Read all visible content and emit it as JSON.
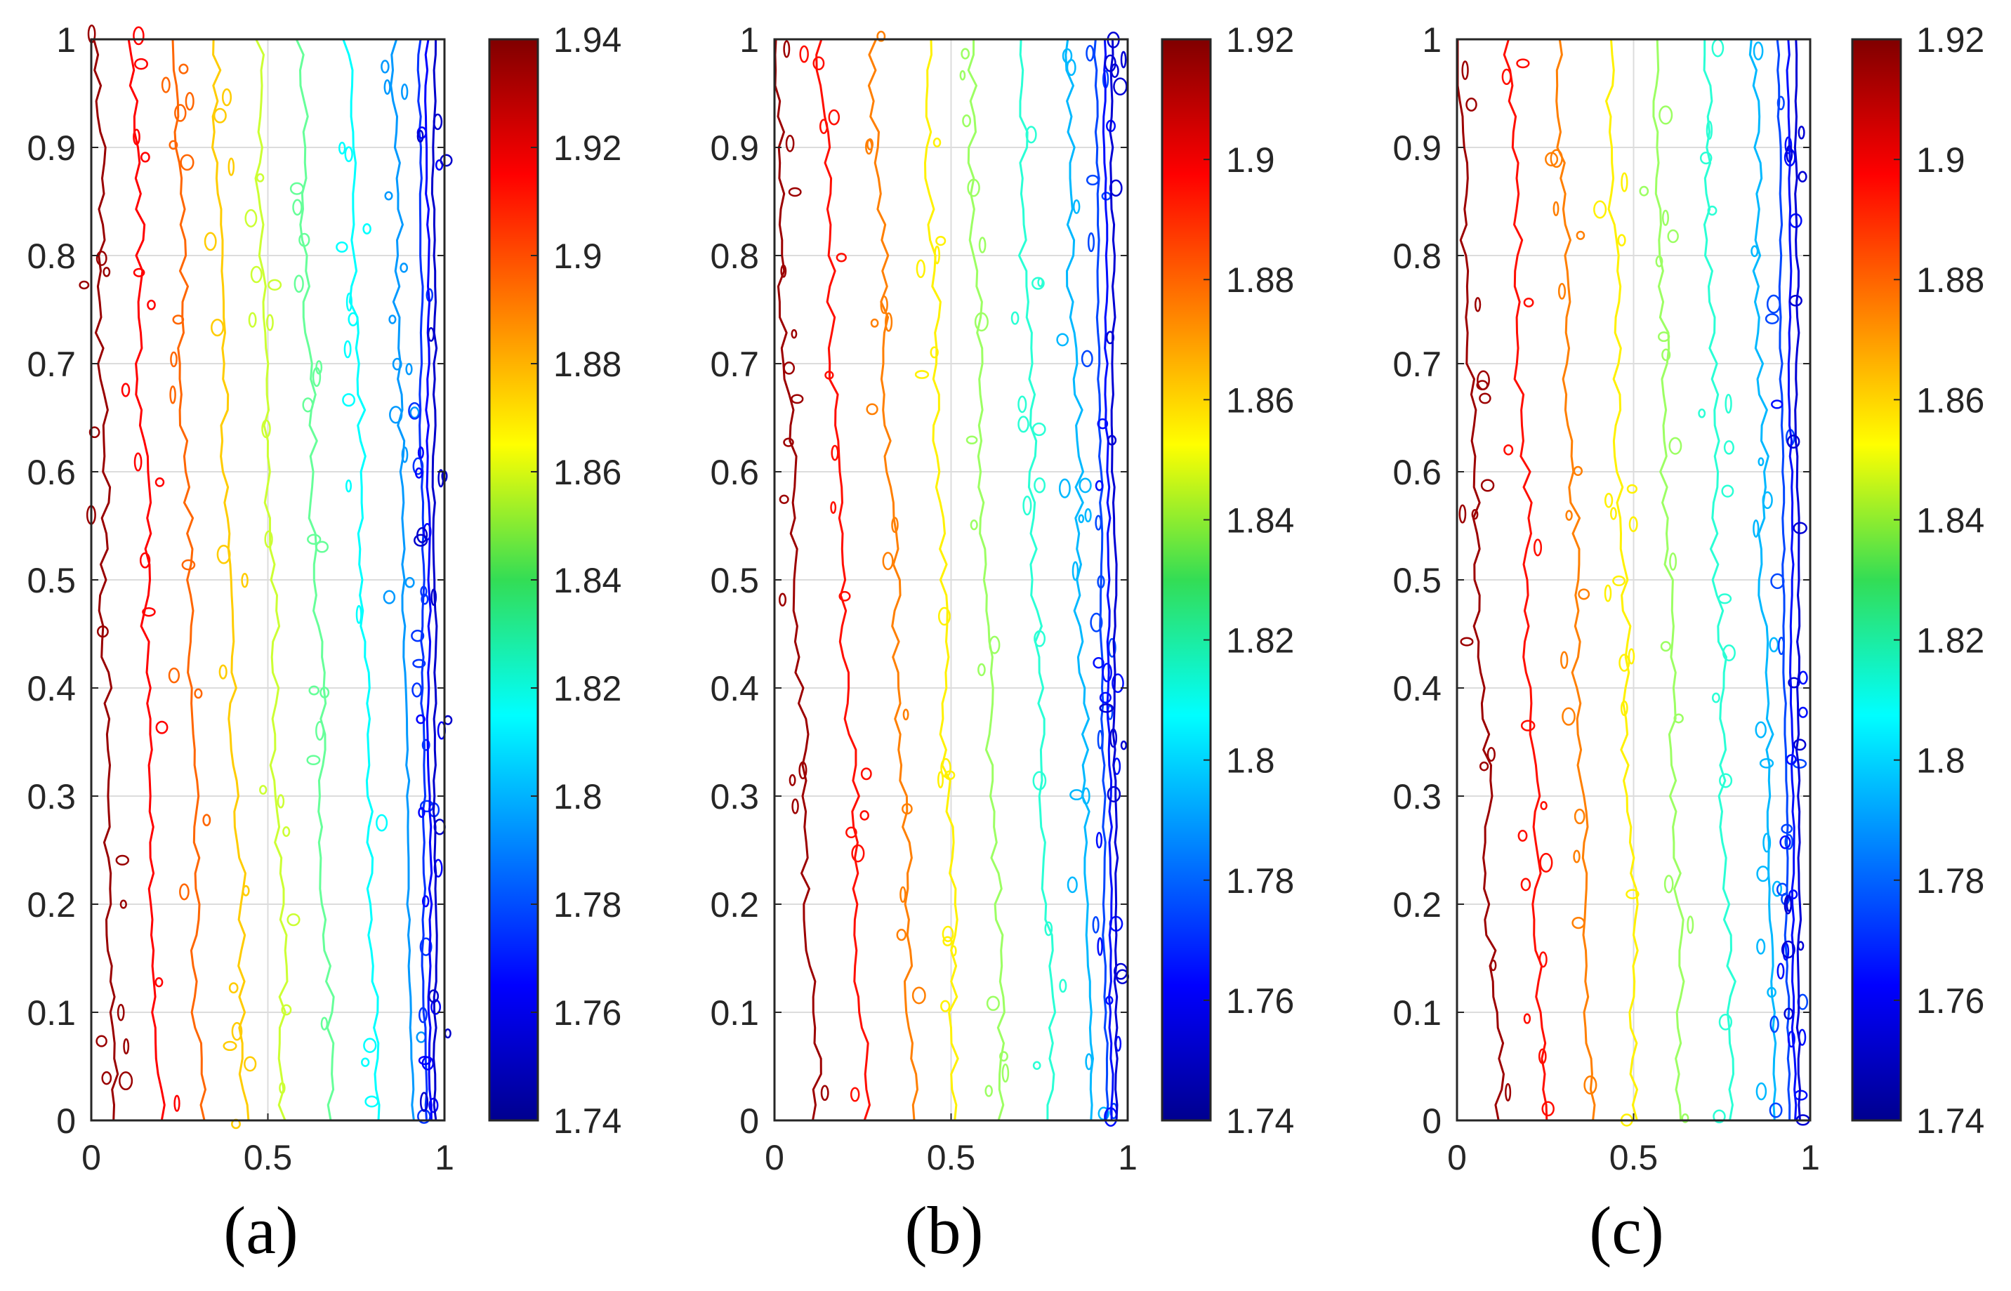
{
  "chart_data": [
    {
      "type": "contour",
      "caption": "(a)",
      "xlim": [
        0,
        1
      ],
      "ylim": [
        0,
        1
      ],
      "x_ticks": [
        "0",
        "0.5",
        "1"
      ],
      "y_ticks": [
        "0",
        "0.1",
        "0.2",
        "0.3",
        "0.4",
        "0.5",
        "0.6",
        "0.7",
        "0.8",
        "0.9",
        "1"
      ],
      "grid": true,
      "colorbar": {
        "range": [
          1.74,
          1.94
        ],
        "ticks": [
          "1.74",
          "1.76",
          "1.78",
          "1.8",
          "1.82",
          "1.84",
          "1.86",
          "1.88",
          "1.9",
          "1.92",
          "1.94"
        ]
      },
      "contour_levels": [
        {
          "level": 1.935,
          "x_bottom": 0.06,
          "x_top": 0.02
        },
        {
          "level": 1.915,
          "x_bottom": 0.19,
          "x_top": 0.12
        },
        {
          "level": 1.895,
          "x_bottom": 0.31,
          "x_top": 0.24
        },
        {
          "level": 1.875,
          "x_bottom": 0.44,
          "x_top": 0.35
        },
        {
          "level": 1.855,
          "x_bottom": 0.55,
          "x_top": 0.47
        },
        {
          "level": 1.835,
          "x_bottom": 0.68,
          "x_top": 0.59
        },
        {
          "level": 1.815,
          "x_bottom": 0.81,
          "x_top": 0.73
        },
        {
          "level": 1.795,
          "x_bottom": 0.91,
          "x_top": 0.86
        },
        {
          "level": 1.775,
          "x_bottom": 0.945,
          "x_top": 0.93
        },
        {
          "level": 1.765,
          "x_bottom": 0.96,
          "x_top": 0.95
        },
        {
          "level": 1.755,
          "x_bottom": 0.975,
          "x_top": 0.97
        }
      ]
    },
    {
      "type": "contour",
      "caption": "(b)",
      "xlim": [
        0,
        1
      ],
      "ylim": [
        0,
        1
      ],
      "x_ticks": [
        "0",
        "0.5",
        "1"
      ],
      "y_ticks": [
        "0",
        "0.1",
        "0.2",
        "0.3",
        "0.4",
        "0.5",
        "0.6",
        "0.7",
        "0.8",
        "0.9",
        "1"
      ],
      "grid": true,
      "colorbar": {
        "range": [
          1.74,
          1.92
        ],
        "ticks": [
          "1.74",
          "1.76",
          "1.78",
          "1.8",
          "1.82",
          "1.84",
          "1.86",
          "1.88",
          "1.9",
          "1.92"
        ]
      },
      "contour_levels": [
        {
          "level": 1.915,
          "x_bottom": 0.12,
          "x_top": 0.0
        },
        {
          "level": 1.895,
          "x_bottom": 0.26,
          "x_top": 0.13
        },
        {
          "level": 1.875,
          "x_bottom": 0.4,
          "x_top": 0.28
        },
        {
          "level": 1.855,
          "x_bottom": 0.52,
          "x_top": 0.43
        },
        {
          "level": 1.835,
          "x_bottom": 0.65,
          "x_top": 0.55
        },
        {
          "level": 1.815,
          "x_bottom": 0.79,
          "x_top": 0.69
        },
        {
          "level": 1.795,
          "x_bottom": 0.9,
          "x_top": 0.83
        },
        {
          "level": 1.775,
          "x_bottom": 0.94,
          "x_top": 0.91
        },
        {
          "level": 1.765,
          "x_bottom": 0.955,
          "x_top": 0.935
        },
        {
          "level": 1.755,
          "x_bottom": 0.97,
          "x_top": 0.955
        }
      ]
    },
    {
      "type": "contour",
      "caption": "(c)",
      "xlim": [
        0,
        1
      ],
      "ylim": [
        0,
        1
      ],
      "x_ticks": [
        "0",
        "0.5",
        "1"
      ],
      "y_ticks": [
        "0",
        "0.1",
        "0.2",
        "0.3",
        "0.4",
        "0.5",
        "0.6",
        "0.7",
        "0.8",
        "0.9",
        "1"
      ],
      "grid": true,
      "colorbar": {
        "range": [
          1.74,
          1.92
        ],
        "ticks": [
          "1.74",
          "1.76",
          "1.78",
          "1.8",
          "1.82",
          "1.84",
          "1.86",
          "1.88",
          "1.9",
          "1.92"
        ]
      },
      "contour_levels": [
        {
          "level": 1.915,
          "x_bottom": 0.12,
          "x_top": 0.0
        },
        {
          "level": 1.895,
          "x_bottom": 0.25,
          "x_top": 0.15
        },
        {
          "level": 1.875,
          "x_bottom": 0.38,
          "x_top": 0.29
        },
        {
          "level": 1.855,
          "x_bottom": 0.51,
          "x_top": 0.43
        },
        {
          "level": 1.835,
          "x_bottom": 0.64,
          "x_top": 0.56
        },
        {
          "level": 1.815,
          "x_bottom": 0.78,
          "x_top": 0.7
        },
        {
          "level": 1.795,
          "x_bottom": 0.9,
          "x_top": 0.84
        },
        {
          "level": 1.775,
          "x_bottom": 0.94,
          "x_top": 0.91
        },
        {
          "level": 1.765,
          "x_bottom": 0.955,
          "x_top": 0.94
        },
        {
          "level": 1.755,
          "x_bottom": 0.97,
          "x_top": 0.96
        }
      ]
    }
  ]
}
